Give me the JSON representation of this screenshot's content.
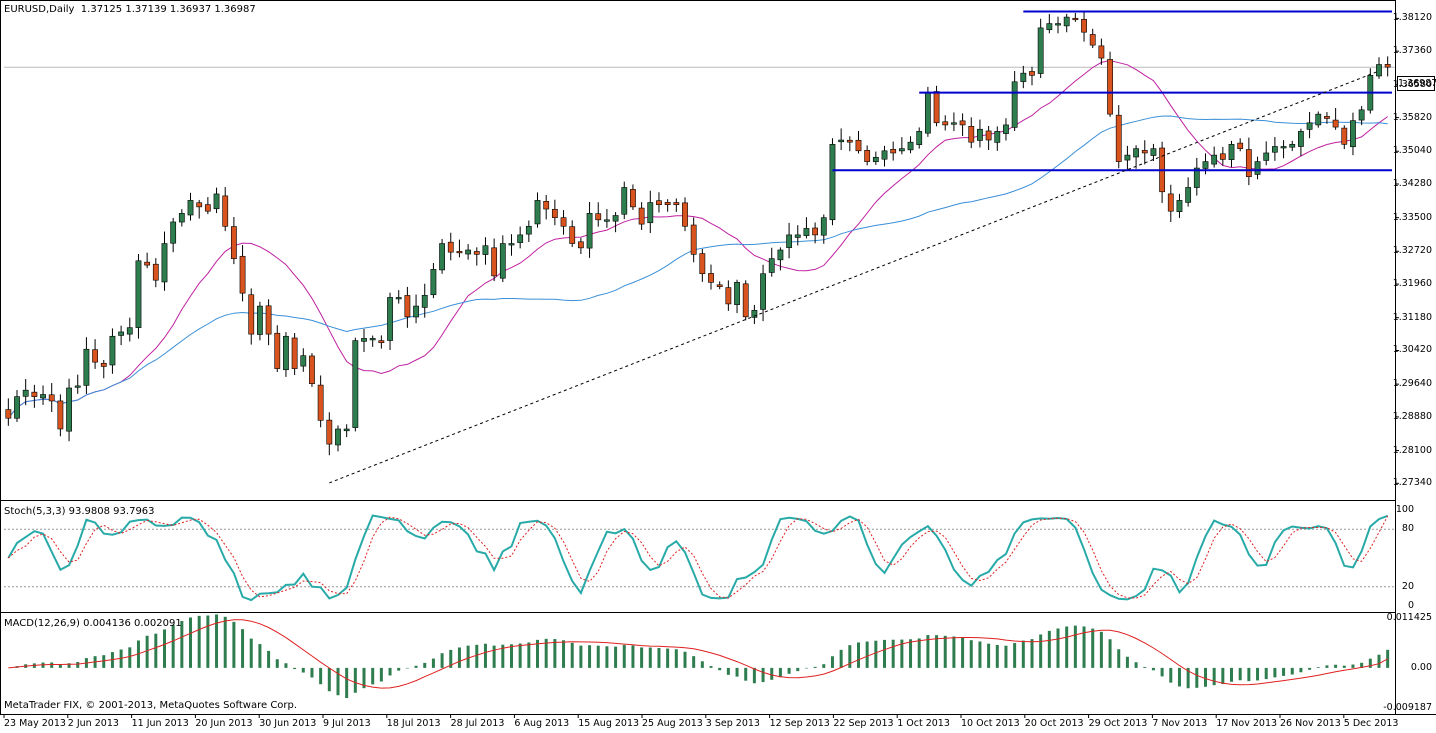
{
  "header": {
    "symbol": "EURUSD,Daily",
    "ohlc": "1.37125 1.37139 1.36937 1.36987",
    "stoch_label": "Stoch(5,3,3) 93.9808 93.7963",
    "macd_label": "MACD(12,26,9) 0.004136 0.002091"
  },
  "copyright": "MetaTrader FIX, © 2001-2013, MetaQuotes Software Corp.",
  "current_price": "1.36987",
  "colors": {
    "bull": "#2e7d4f",
    "bear": "#d9531e",
    "ma_fast": "#c020a0",
    "ma_slow": "#3a8fd8",
    "stoch_main": "#28aaa8",
    "stoch_signal": "#e02020",
    "macd_hist": "#2e7d4f",
    "macd_signal": "#e02020",
    "sr_line": "#0000cc"
  },
  "price_axis": [
    "1.38120",
    "1.37360",
    "1.36580",
    "1.35820",
    "1.35040",
    "1.34280",
    "1.33500",
    "1.32720",
    "1.31960",
    "1.31180",
    "1.30420",
    "1.29640",
    "1.28880",
    "1.28100",
    "1.27340"
  ],
  "stoch_axis": [
    "100",
    "80",
    "20",
    "0"
  ],
  "macd_axis": [
    "0.011425",
    "0.00",
    "-0.009187"
  ],
  "date_axis": [
    "23 May 2013",
    "2 Jun 2013",
    "11 Jun 2013",
    "20 Jun 2013",
    "30 Jun 2013",
    "9 Jul 2013",
    "18 Jul 2013",
    "28 Jul 2013",
    "6 Aug 2013",
    "15 Aug 2013",
    "25 Aug 2013",
    "3 Sep 2013",
    "12 Sep 2013",
    "22 Sep 2013",
    "1 Oct 2013",
    "10 Oct 2013",
    "20 Oct 2013",
    "29 Oct 2013",
    "7 Nov 2013",
    "17 Nov 2013",
    "26 Nov 2013",
    "5 Dec 2013"
  ],
  "chart_data": {
    "type": "candlestick",
    "title": "EURUSD,Daily",
    "ylim": [
      1.27,
      1.385
    ],
    "horizontal_levels": [
      {
        "price": 1.3828,
        "from": 117,
        "to": 200
      },
      {
        "price": 1.364,
        "from": 105,
        "to": 200
      },
      {
        "price": 1.346,
        "from": 95,
        "to": 200
      }
    ],
    "trendline": {
      "from_index": 37,
      "from_price": 1.2735,
      "to_index": 158,
      "to_price": 1.369
    },
    "closes": [
      1.2885,
      1.2935,
      1.295,
      1.2935,
      1.294,
      1.2925,
      1.286,
      1.2955,
      1.296,
      1.3045,
      1.3015,
      1.3005,
      1.3075,
      1.3085,
      1.3095,
      1.325,
      1.324,
      1.3205,
      1.329,
      1.334,
      1.336,
      1.339,
      1.3375,
      1.3365,
      1.3405,
      1.333,
      1.3255,
      1.3175,
      1.308,
      1.3145,
      1.308,
      1.3,
      1.3075,
      1.3,
      1.303,
      1.2965,
      1.288,
      1.2825,
      1.286,
      1.286,
      1.3065,
      1.307,
      1.307,
      1.306,
      1.3165,
      1.3165,
      1.312,
      1.3145,
      1.317,
      1.323,
      1.329,
      1.327,
      1.327,
      1.3275,
      1.3265,
      1.3285,
      1.3215,
      1.329,
      1.329,
      1.331,
      1.333,
      1.339,
      1.337,
      1.335,
      1.333,
      1.329,
      1.328,
      1.336,
      1.3345,
      1.3345,
      1.3355,
      1.342,
      1.3375,
      1.3335,
      1.3385,
      1.338,
      1.338,
      1.338,
      1.333,
      1.3265,
      1.322,
      1.32,
      1.319,
      1.315,
      1.32,
      1.312,
      1.3135,
      1.322,
      1.3255,
      1.3275,
      1.331,
      1.331,
      1.3325,
      1.331,
      1.335,
      1.352,
      1.353,
      1.3525,
      1.3505,
      1.348,
      1.349,
      1.3505,
      1.35,
      1.351,
      1.3525,
      1.355,
      1.364,
      1.357,
      1.3565,
      1.357,
      1.3565,
      1.3525,
      1.3555,
      1.353,
      1.355,
      1.3565,
      1.3665,
      1.3685,
      1.368,
      1.379,
      1.38,
      1.38,
      1.3815,
      1.381,
      1.378,
      1.375,
      1.372,
      1.359,
      1.348,
      1.3495,
      1.351,
      1.35,
      1.351,
      1.341,
      1.3365,
      1.339,
      1.342,
      1.3465,
      1.348,
      1.3495,
      1.3485,
      1.352,
      1.351,
      1.3445,
      1.348,
      1.35,
      1.3515,
      1.3515,
      1.352,
      1.355,
      1.357,
      1.359,
      1.358,
      1.356,
      1.352,
      1.3575,
      1.36,
      1.368,
      1.3705,
      1.3699
    ],
    "stochastic": {
      "main": 93.98,
      "signal": 93.8,
      "levels": [
        20,
        80
      ]
    },
    "macd": {
      "main": 0.004136,
      "signal": 0.002091
    }
  }
}
